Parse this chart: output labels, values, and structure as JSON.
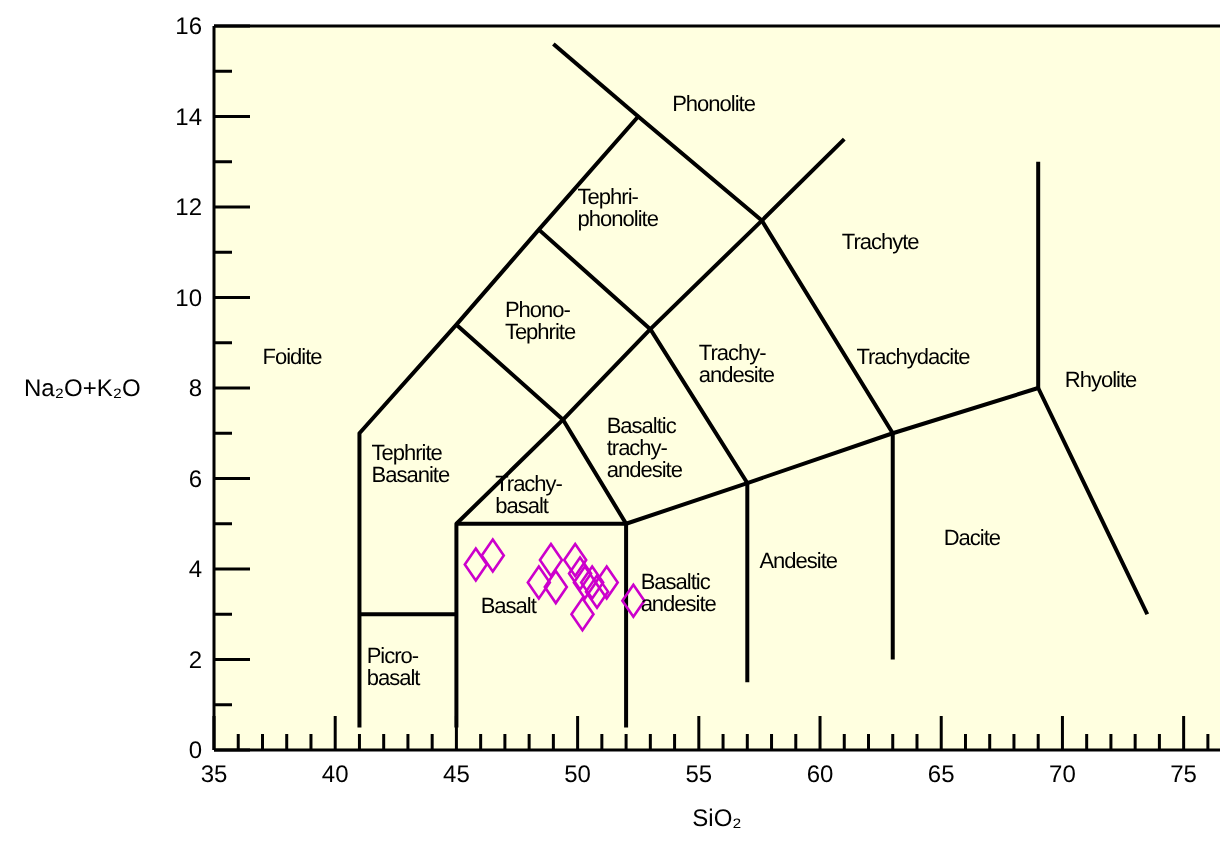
{
  "chart_data": {
    "type": "scatter",
    "xlabel": "SiO₂",
    "ylabel": "Na₂O+K₂O",
    "xlim": [
      35,
      76.5
    ],
    "ylim": [
      0,
      16
    ],
    "xticks": [
      35,
      {
        "value": 36,
        "label": null
      },
      {
        "value": 37,
        "label": null
      },
      {
        "value": 38,
        "label": null
      },
      {
        "value": 39,
        "label": null
      },
      40,
      {
        "value": 41,
        "label": null
      },
      {
        "value": 42,
        "label": null
      },
      {
        "value": 43,
        "label": null
      },
      {
        "value": 44,
        "label": null
      },
      45,
      {
        "value": 46,
        "label": null
      },
      {
        "value": 47,
        "label": null
      },
      {
        "value": 48,
        "label": null
      },
      {
        "value": 49,
        "label": null
      },
      50,
      {
        "value": 51,
        "label": null
      },
      {
        "value": 52,
        "label": null
      },
      {
        "value": 53,
        "label": null
      },
      {
        "value": 54,
        "label": null
      },
      55,
      {
        "value": 56,
        "label": null
      },
      {
        "value": 57,
        "label": null
      },
      {
        "value": 58,
        "label": null
      },
      {
        "value": 59,
        "label": null
      },
      60,
      {
        "value": 61,
        "label": null
      },
      {
        "value": 62,
        "label": null
      },
      {
        "value": 63,
        "label": null
      },
      {
        "value": 64,
        "label": null
      },
      65,
      {
        "value": 66,
        "label": null
      },
      {
        "value": 67,
        "label": null
      },
      {
        "value": 68,
        "label": null
      },
      {
        "value": 69,
        "label": null
      },
      70,
      {
        "value": 71,
        "label": null
      },
      {
        "value": 72,
        "label": null
      },
      {
        "value": 73,
        "label": null
      },
      {
        "value": 74,
        "label": null
      },
      75,
      {
        "value": 76,
        "label": null
      }
    ],
    "yticks": [
      0,
      {
        "value": 1,
        "label": null
      },
      2,
      {
        "value": 3,
        "label": null
      },
      4,
      {
        "value": 5,
        "label": null
      },
      6,
      {
        "value": 7,
        "label": null
      },
      8,
      {
        "value": 9,
        "label": null
      },
      10,
      {
        "value": 11,
        "label": null
      },
      12,
      {
        "value": 13,
        "label": null
      },
      14,
      {
        "value": 15,
        "label": null
      },
      16
    ],
    "grid": false,
    "legend": false,
    "marker": "diamond",
    "line_style": "solid",
    "series": [
      {
        "color": "#cc00cc",
        "x": [
          45.8,
          46.5,
          48.4,
          48.9,
          49.1,
          49.9,
          50.1,
          50.2,
          50.3,
          50.6,
          50.8,
          51.2,
          52.3
        ],
        "values": [
          4.1,
          4.3,
          3.7,
          4.2,
          3.6,
          4.2,
          3.9,
          3.0,
          3.7,
          3.7,
          3.5,
          3.7,
          3.3
        ]
      },
      {
        "type": "line",
        "marker": "none",
        "color": "#000000",
        "x": [
          41,
          41,
          45,
          48.4,
          52.5,
          57.6,
          63,
          63
        ],
        "values": [
          0.5,
          7,
          9.4,
          11.5,
          14,
          11.7,
          7,
          2
        ]
      },
      {
        "type": "line",
        "marker": "none",
        "color": "#000000",
        "x": [
          49,
          52.5
        ],
        "values": [
          15.6,
          14
        ]
      },
      {
        "type": "line",
        "marker": "none",
        "color": "#000000",
        "x": [
          45,
          45,
          49.4,
          53,
          57.6,
          61
        ],
        "values": [
          0.5,
          5,
          7.3,
          9.3,
          11.7,
          13.5
        ]
      },
      {
        "type": "line",
        "marker": "none",
        "color": "#000000",
        "x": [
          41,
          45
        ],
        "values": [
          3,
          3
        ]
      },
      {
        "type": "line",
        "marker": "none",
        "color": "#000000",
        "x": [
          45,
          52,
          57,
          63,
          69,
          73.5
        ],
        "values": [
          5,
          5,
          5.9,
          7,
          8,
          3
        ]
      },
      {
        "type": "line",
        "marker": "none",
        "color": "#000000",
        "x": [
          69,
          69
        ],
        "values": [
          8,
          13
        ]
      },
      {
        "type": "line",
        "marker": "none",
        "color": "#000000",
        "x": [
          52,
          52,
          49.4,
          45
        ],
        "values": [
          0.5,
          5,
          7.3,
          9.4
        ]
      },
      {
        "type": "line",
        "marker": "none",
        "color": "#000000",
        "x": [
          48.4,
          53,
          57,
          57
        ],
        "values": [
          11.5,
          9.3,
          5.9,
          1.5
        ]
      }
    ],
    "annotations": [
      "Phonolite",
      "Tephri-\nphonolite",
      "Trachyte",
      "Phono-\nTephrite",
      "Foidite",
      "Trachy-\nandesite",
      "Trachydacite",
      "Rhyolite",
      "Tephrite\nBasanite",
      "Trachy-\nbasalt",
      "Basaltic\ntrachy-\nandesite",
      "Andesite",
      "Dacite",
      "Basalt",
      "Basaltic\nandesite",
      "Picro-\nbasalt"
    ]
  }
}
